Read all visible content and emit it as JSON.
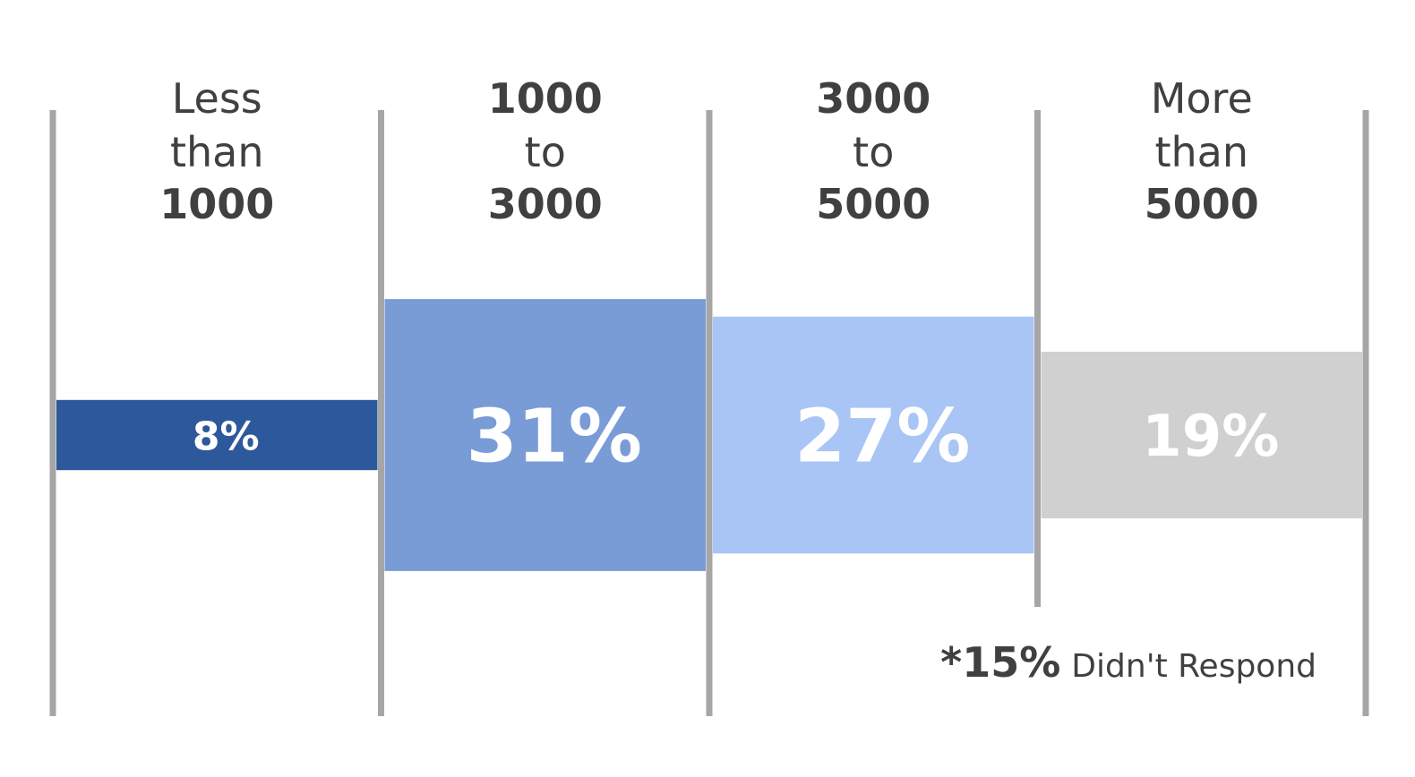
{
  "chart_data": {
    "type": "bar",
    "categories": [
      {
        "lines": [
          {
            "text": "Less",
            "bold": false
          },
          {
            "text": "than",
            "bold": false
          },
          {
            "text": "1000",
            "bold": true
          }
        ]
      },
      {
        "lines": [
          {
            "text": "1000",
            "bold": true
          },
          {
            "text": "to",
            "bold": false
          },
          {
            "text": "3000",
            "bold": true
          }
        ]
      },
      {
        "lines": [
          {
            "text": "3000",
            "bold": true
          },
          {
            "text": "to",
            "bold": false
          },
          {
            "text": "5000",
            "bold": true
          }
        ]
      },
      {
        "lines": [
          {
            "text": "More",
            "bold": false
          },
          {
            "text": "than",
            "bold": false
          },
          {
            "text": "5000",
            "bold": true
          }
        ]
      }
    ],
    "values": [
      8,
      31,
      27,
      19
    ],
    "value_labels": [
      "8%",
      "31%",
      "27%",
      "19%"
    ],
    "colors": [
      "#2e589c",
      "#7a9cd6",
      "#a9c5f5",
      "#d0d0d0"
    ],
    "divider_color": "#a6a6a6",
    "note": {
      "asterisk": "*",
      "percent": "15%",
      "text": "Didn't Respond"
    }
  }
}
